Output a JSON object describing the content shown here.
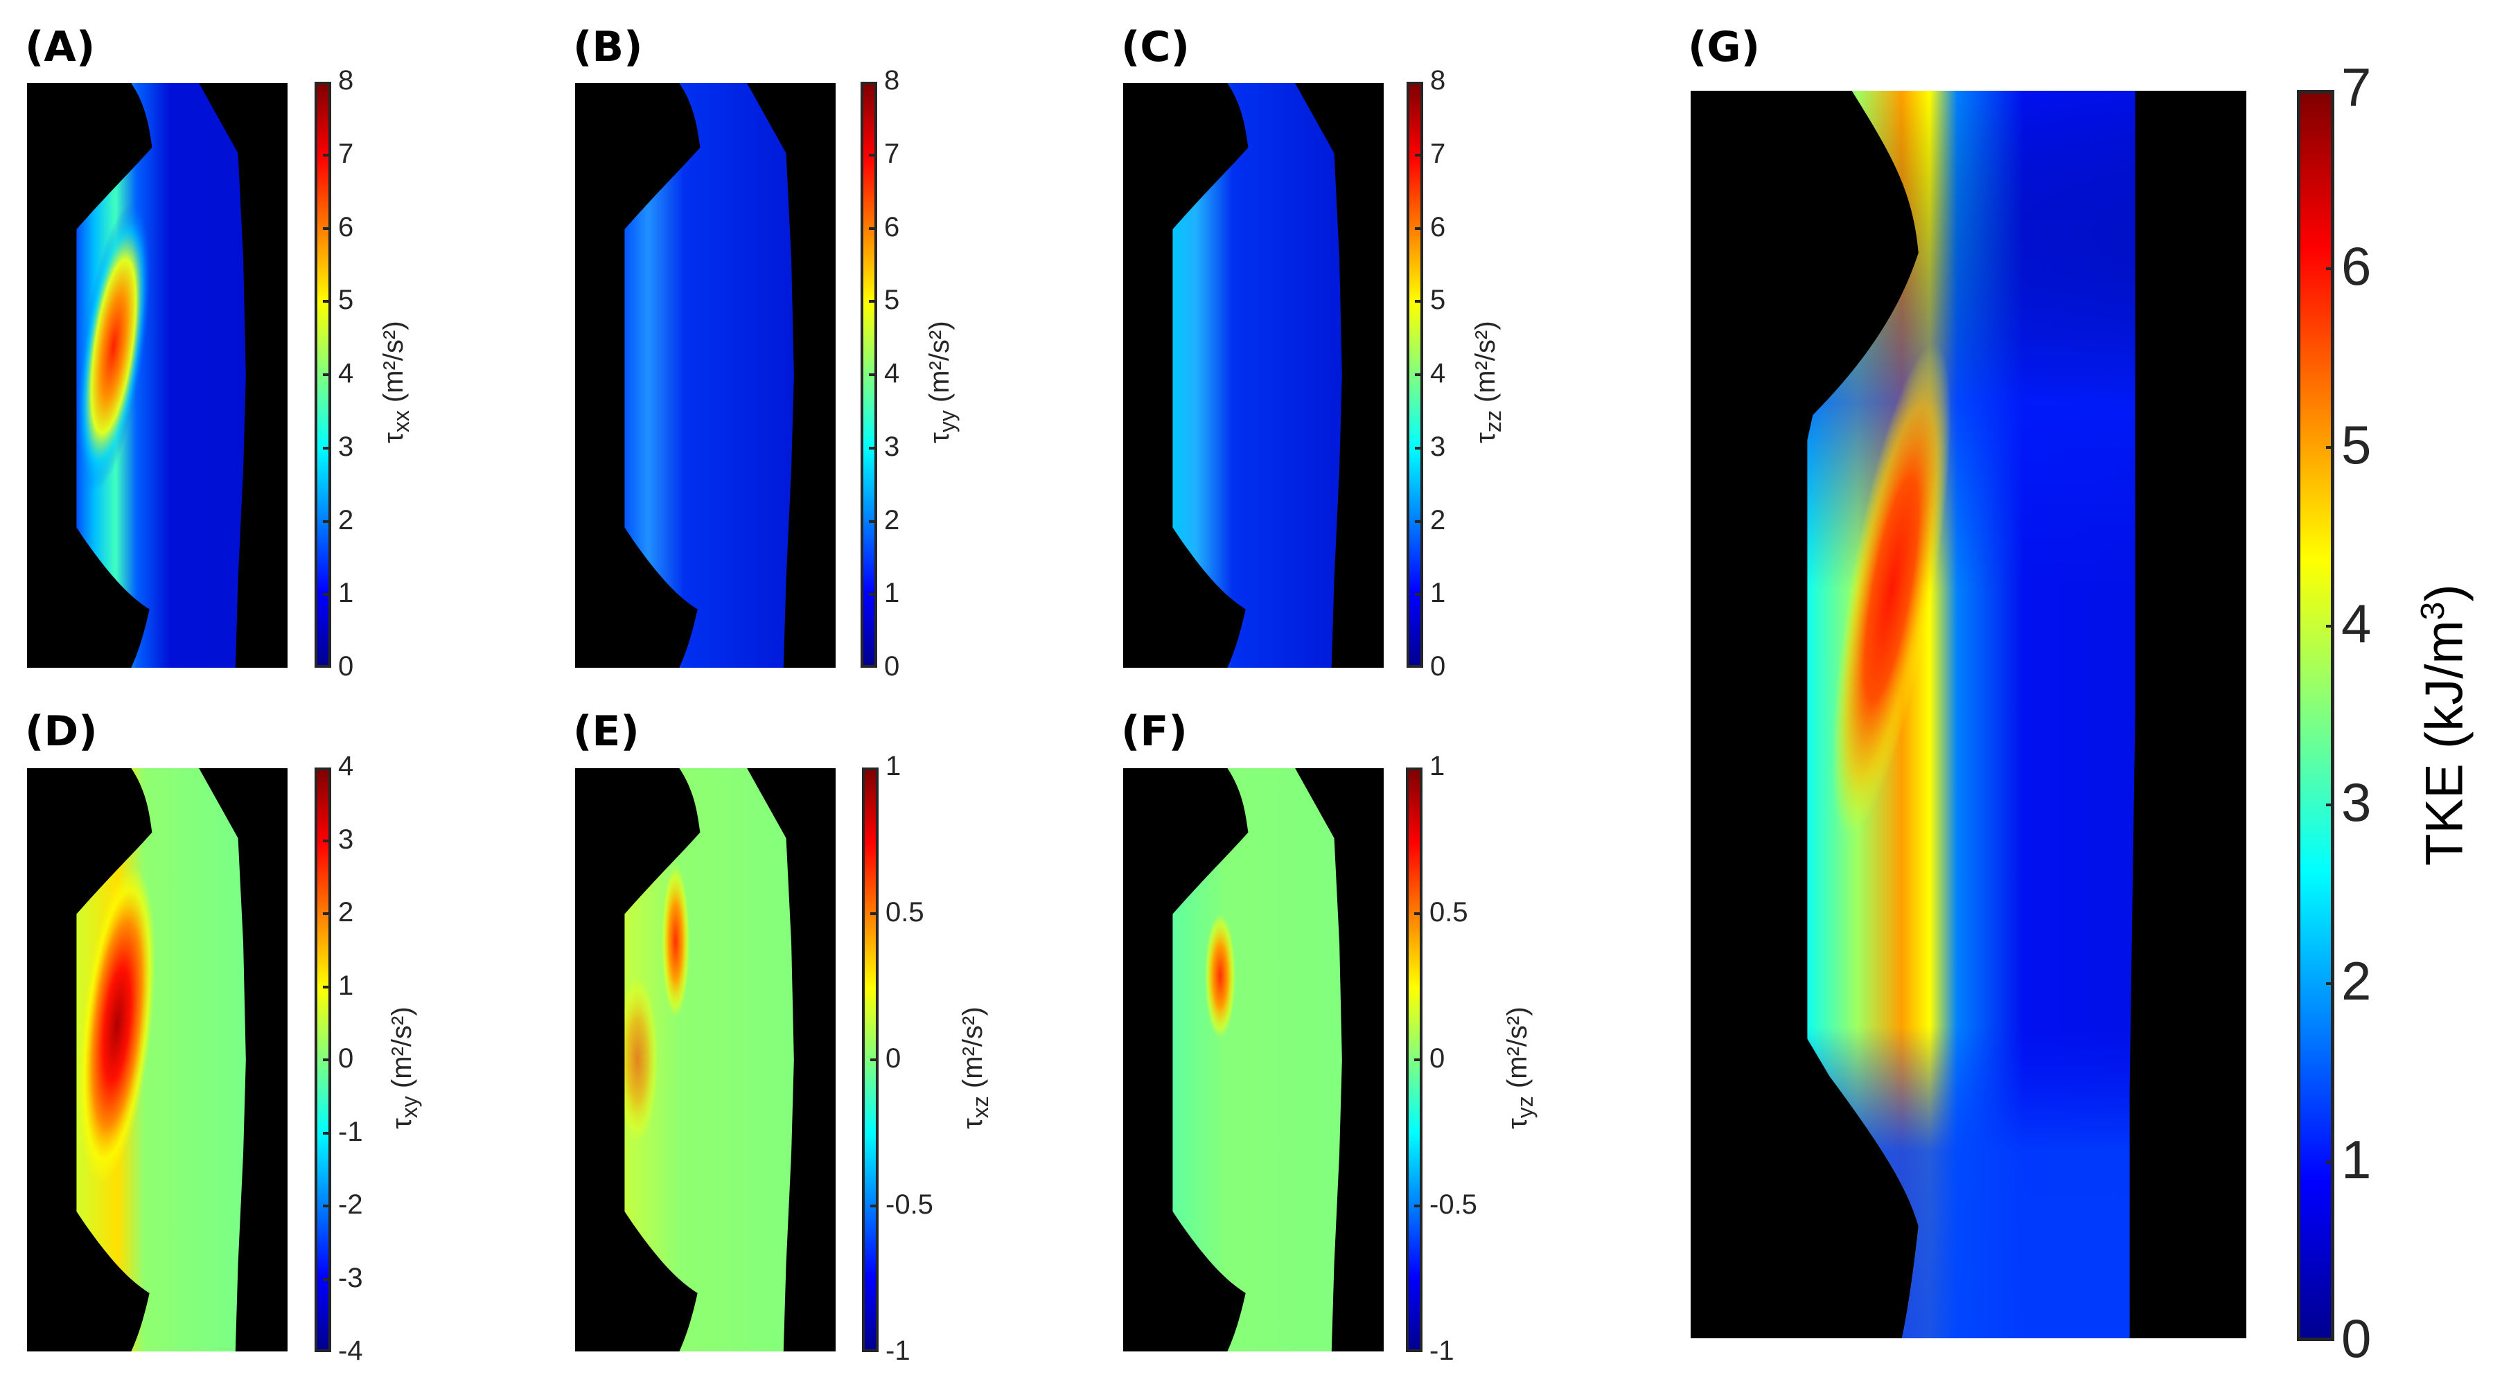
{
  "figure": {
    "panels": [
      {
        "id": "A",
        "label": "(A)",
        "cbar_symbol": "τ",
        "cbar_sub": "xx",
        "cbar_units": " (m²/s²)",
        "ticks": [
          "8",
          "7",
          "6",
          "5",
          "4",
          "3",
          "2",
          "1",
          "0"
        ],
        "range": [
          0,
          8
        ],
        "field": "positive"
      },
      {
        "id": "B",
        "label": "(B)",
        "cbar_symbol": "τ",
        "cbar_sub": "yy",
        "cbar_units": " (m²/s²)",
        "ticks": [
          "8",
          "7",
          "6",
          "5",
          "4",
          "3",
          "2",
          "1",
          "0"
        ],
        "range": [
          0,
          8
        ],
        "field": "positive"
      },
      {
        "id": "C",
        "label": "(C)",
        "cbar_symbol": "τ",
        "cbar_sub": "zz",
        "cbar_units": " (m²/s²)",
        "ticks": [
          "8",
          "7",
          "6",
          "5",
          "4",
          "3",
          "2",
          "1",
          "0"
        ],
        "range": [
          0,
          8
        ],
        "field": "positive"
      },
      {
        "id": "D",
        "label": "(D)",
        "cbar_symbol": "τ",
        "cbar_sub": "xy",
        "cbar_units": " (m²/s²)",
        "ticks": [
          "4",
          "3",
          "2",
          "1",
          "0",
          "-1",
          "-2",
          "-3",
          "-4"
        ],
        "range": [
          -4,
          4
        ],
        "field": "signed"
      },
      {
        "id": "E",
        "label": "(E)",
        "cbar_symbol": "τ",
        "cbar_sub": "xz",
        "cbar_units": " (m²/s²)",
        "ticks": [
          "1",
          "0.5",
          "0",
          "-0.5",
          "-1"
        ],
        "range": [
          -1,
          1
        ],
        "field": "signed"
      },
      {
        "id": "F",
        "label": "(F)",
        "cbar_symbol": "τ",
        "cbar_sub": "yz",
        "cbar_units": " (m²/s²)",
        "ticks": [
          "1",
          "0.5",
          "0",
          "-0.5",
          "-1"
        ],
        "range": [
          -1,
          1
        ],
        "field": "signed"
      },
      {
        "id": "G",
        "label": "(G)",
        "cbar_symbol": "TKE (kJ/m",
        "cbar_sup": "3",
        "cbar_close": ")",
        "ticks": [
          "7",
          "6",
          "5",
          "4",
          "3",
          "2",
          "1",
          "0"
        ],
        "range": [
          0,
          7
        ],
        "field": "tke"
      }
    ],
    "colormap": "jet",
    "colors": {
      "background": "#000000",
      "low": "#00008f",
      "mid": "#80ff80",
      "high": "#800000",
      "axis": "#262626"
    }
  },
  "chart_data": [
    {
      "type": "heatmap",
      "title": "(A)",
      "colorbar_label": "τxx (m²/s²)",
      "colorbar_range": [
        0,
        8
      ],
      "colorbar_ticks": [
        0,
        1,
        2,
        3,
        4,
        5,
        6,
        7,
        8
      ],
      "description": "Normal Reynolds stress xx; peak ~6 near left shear layer downstream of upper throat"
    },
    {
      "type": "heatmap",
      "title": "(B)",
      "colorbar_label": "τyy (m²/s²)",
      "colorbar_range": [
        0,
        8
      ],
      "colorbar_ticks": [
        0,
        1,
        2,
        3,
        4,
        5,
        6,
        7,
        8
      ],
      "description": "Normal Reynolds stress yy; mostly ~1, mild ~2-3 along left shear layer"
    },
    {
      "type": "heatmap",
      "title": "(C)",
      "colorbar_label": "τzz (m²/s²)",
      "colorbar_range": [
        0,
        8
      ],
      "colorbar_ticks": [
        0,
        1,
        2,
        3,
        4,
        5,
        6,
        7,
        8
      ],
      "description": "Normal Reynolds stress zz; ~2.5-3 along left region, peaks at throat edges"
    },
    {
      "type": "heatmap",
      "title": "(D)",
      "colorbar_label": "τxy (m²/s²)",
      "colorbar_range": [
        -4,
        4
      ],
      "colorbar_ticks": [
        -4,
        -3,
        -2,
        -1,
        0,
        1,
        2,
        3,
        4
      ],
      "description": "Shear stress xy; peak ~3.5 in left shear layer, ~0 elsewhere"
    },
    {
      "type": "heatmap",
      "title": "(E)",
      "colorbar_label": "τxz (m²/s²)",
      "colorbar_range": [
        -1,
        1
      ],
      "colorbar_ticks": [
        -1,
        -0.5,
        0,
        0.5,
        1
      ],
      "description": "Shear stress xz; ~0 with positive patches ~0.6-0.8 near shear layer"
    },
    {
      "type": "heatmap",
      "title": "(F)",
      "colorbar_label": "τyz (m²/s²)",
      "colorbar_range": [
        -1,
        1
      ],
      "colorbar_ticks": [
        -1,
        -0.5,
        0,
        0.5,
        1
      ],
      "description": "Shear stress yz; ~0 with positive patch ~0.5 near shear layer"
    },
    {
      "type": "heatmap",
      "title": "(G)",
      "colorbar_label": "TKE (kJ/m³)",
      "colorbar_range": [
        0,
        7
      ],
      "colorbar_ticks": [
        0,
        1,
        2,
        3,
        4,
        5,
        6,
        7
      ],
      "description": "Turbulent kinetic energy; peak ~6 in left shear layer, ~1 in core"
    }
  ]
}
